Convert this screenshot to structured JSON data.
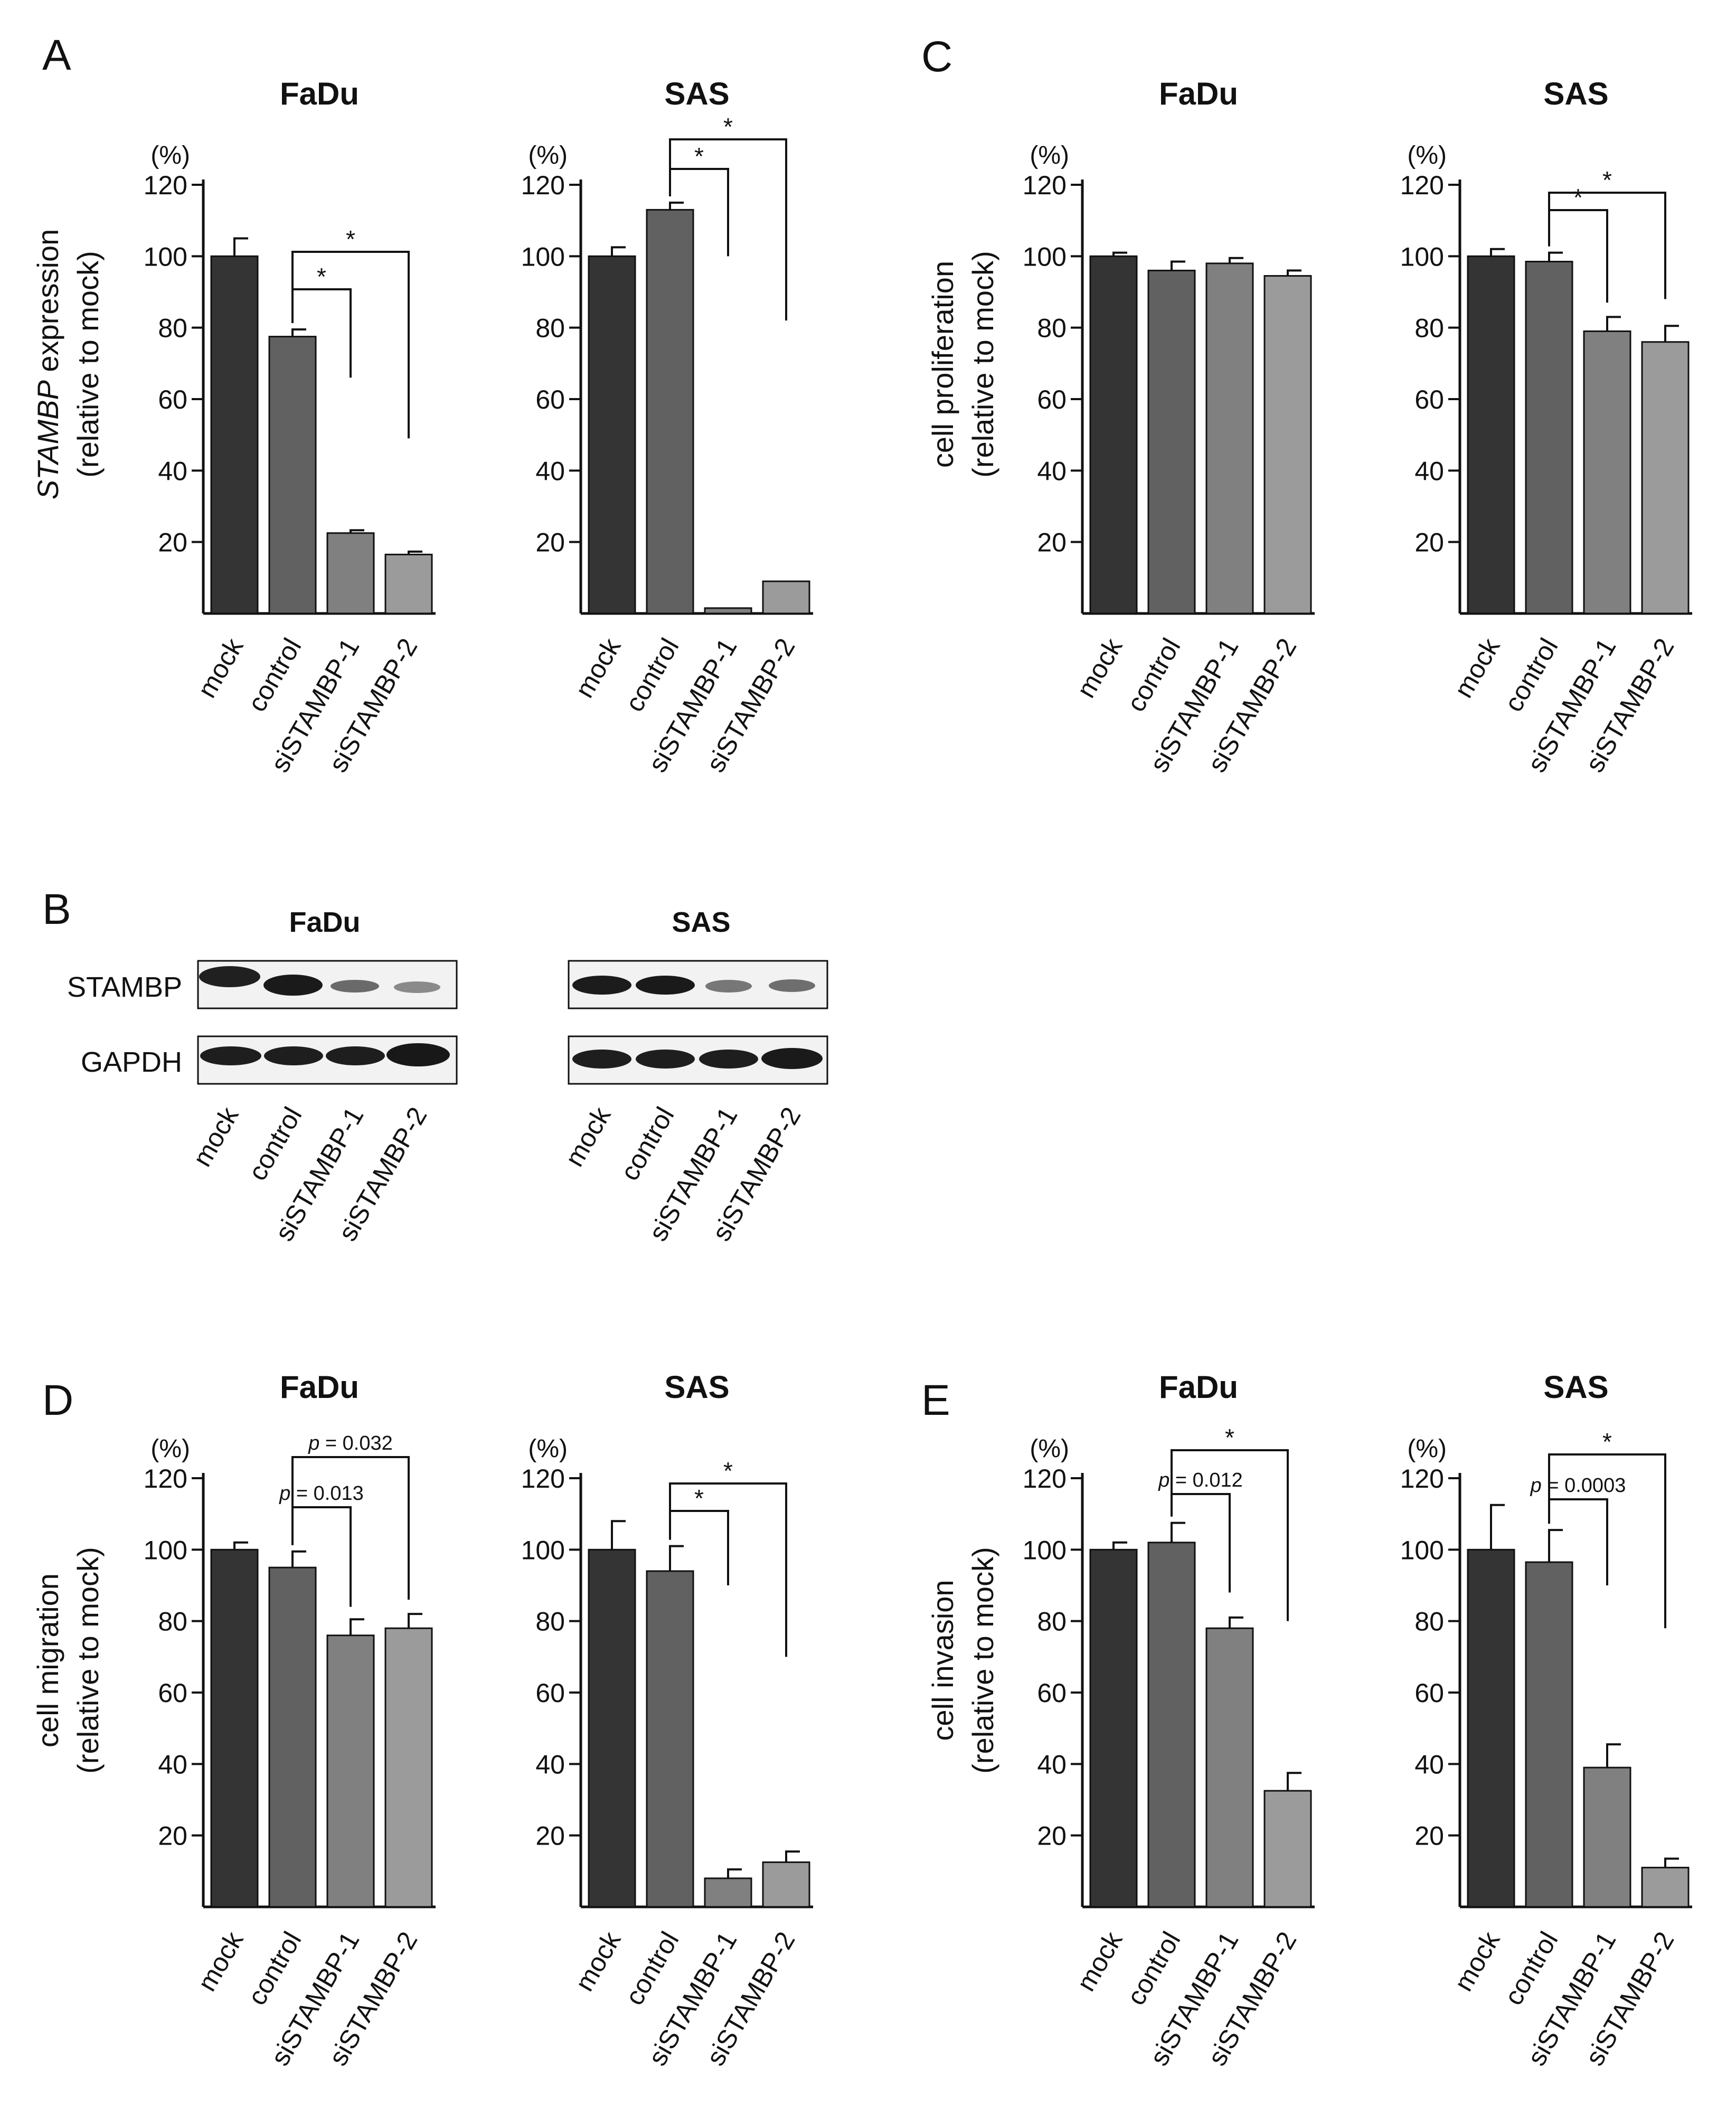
{
  "colors": {
    "mock": "#343434",
    "control": "#616161",
    "siSTAMBP-1": "#808080",
    "siSTAMBP-2": "#9b9b9b",
    "axis": "#111111"
  },
  "categories": [
    "mock",
    "control",
    "siSTAMBP-1",
    "siSTAMBP-2"
  ],
  "percent_unit": "(%)",
  "panel_letters": {
    "A": "A",
    "B": "B",
    "C": "C",
    "D": "D",
    "E": "E"
  },
  "ylabels": {
    "A": {
      "italic": "STAMBP",
      "rest": " expression",
      "line2": "(relative to mock)"
    },
    "C": {
      "line1": "cell proliferation",
      "line2": "(relative to mock)"
    },
    "D": {
      "line1": "cell migration",
      "line2": "(relative to mock)"
    },
    "E": {
      "line1": "cell invasion",
      "line2": "(relative to mock)"
    }
  },
  "western_blot": {
    "panel": "B",
    "titles": [
      "FaDu",
      "SAS"
    ],
    "bands": [
      "STAMBP",
      "GAPDH"
    ]
  },
  "chart_data": [
    {
      "type": "bar",
      "panel": "A",
      "title": "FaDu",
      "categories": [
        "mock",
        "control",
        "siSTAMBP-1",
        "siSTAMBP-2"
      ],
      "values": [
        100,
        77.5,
        22.5,
        16.5
      ],
      "errors": [
        5,
        2,
        0.8,
        0.8
      ],
      "ylim": [
        0,
        120
      ],
      "yticks": [
        20,
        40,
        60,
        80,
        100,
        120
      ],
      "significance": [
        {
          "from": "control",
          "to": "siSTAMBP-1",
          "label": "*"
        },
        {
          "from": "control",
          "to": "siSTAMBP-2",
          "label": "*"
        }
      ]
    },
    {
      "type": "bar",
      "panel": "A",
      "title": "SAS",
      "categories": [
        "mock",
        "control",
        "siSTAMBP-1",
        "siSTAMBP-2"
      ],
      "values": [
        100,
        113,
        1.5,
        9
      ],
      "errors": [
        2.5,
        2,
        0.3,
        0.4
      ],
      "ylim": [
        0,
        120
      ],
      "yticks": [
        20,
        40,
        60,
        80,
        100,
        120
      ],
      "significance": [
        {
          "from": "control",
          "to": "siSTAMBP-1",
          "label": "*"
        },
        {
          "from": "control",
          "to": "siSTAMBP-2",
          "label": "*"
        }
      ]
    },
    {
      "type": "bar",
      "panel": "C",
      "title": "FaDu",
      "categories": [
        "mock",
        "control",
        "siSTAMBP-1",
        "siSTAMBP-2"
      ],
      "values": [
        100,
        96,
        98,
        94.5
      ],
      "errors": [
        1,
        2.5,
        1.5,
        1.5
      ],
      "ylim": [
        0,
        120
      ],
      "yticks": [
        20,
        40,
        60,
        80,
        100,
        120
      ],
      "significance": []
    },
    {
      "type": "bar",
      "panel": "C",
      "title": "SAS",
      "categories": [
        "mock",
        "control",
        "siSTAMBP-1",
        "siSTAMBP-2"
      ],
      "values": [
        100,
        98.5,
        79,
        76
      ],
      "errors": [
        2,
        2.5,
        4,
        4.5
      ],
      "ylim": [
        0,
        120
      ],
      "yticks": [
        20,
        40,
        60,
        80,
        100,
        120
      ],
      "significance": [
        {
          "from": "control",
          "to": "siSTAMBP-1",
          "label": "*"
        },
        {
          "from": "control",
          "to": "siSTAMBP-2",
          "label": "*"
        }
      ]
    },
    {
      "type": "bar",
      "panel": "D",
      "title": "FaDu",
      "categories": [
        "mock",
        "control",
        "siSTAMBP-1",
        "siSTAMBP-2"
      ],
      "values": [
        100,
        95,
        76,
        78
      ],
      "errors": [
        2,
        4.5,
        4.5,
        4
      ],
      "ylim": [
        0,
        120
      ],
      "yticks": [
        20,
        40,
        60,
        80,
        100,
        120
      ],
      "significance": [
        {
          "from": "control",
          "to": "siSTAMBP-1",
          "label": "p = 0.013",
          "italic_p": true
        },
        {
          "from": "control",
          "to": "siSTAMBP-2",
          "label": "p = 0.032",
          "italic_p": true
        }
      ]
    },
    {
      "type": "bar",
      "panel": "D",
      "title": "SAS",
      "categories": [
        "mock",
        "control",
        "siSTAMBP-1",
        "siSTAMBP-2"
      ],
      "values": [
        100,
        94,
        8,
        12.5
      ],
      "errors": [
        8,
        7,
        2.5,
        3
      ],
      "ylim": [
        0,
        120
      ],
      "yticks": [
        20,
        40,
        60,
        80,
        100,
        120
      ],
      "significance": [
        {
          "from": "control",
          "to": "siSTAMBP-1",
          "label": "*"
        },
        {
          "from": "control",
          "to": "siSTAMBP-2",
          "label": "*"
        }
      ]
    },
    {
      "type": "bar",
      "panel": "E",
      "title": "FaDu",
      "categories": [
        "mock",
        "control",
        "siSTAMBP-1",
        "siSTAMBP-2"
      ],
      "values": [
        100,
        102,
        78,
        32.5
      ],
      "errors": [
        2,
        5.5,
        3,
        5
      ],
      "ylim": [
        0,
        120
      ],
      "yticks": [
        20,
        40,
        60,
        80,
        100,
        120
      ],
      "significance": [
        {
          "from": "control",
          "to": "siSTAMBP-1",
          "label": "p = 0.012",
          "italic_p": true
        },
        {
          "from": "control",
          "to": "siSTAMBP-2",
          "label": "*"
        }
      ]
    },
    {
      "type": "bar",
      "panel": "E",
      "title": "SAS",
      "categories": [
        "mock",
        "control",
        "siSTAMBP-1",
        "siSTAMBP-2"
      ],
      "values": [
        100,
        96.5,
        39,
        11
      ],
      "errors": [
        12.5,
        9,
        6.5,
        2.5
      ],
      "ylim": [
        0,
        120
      ],
      "yticks": [
        20,
        40,
        60,
        80,
        100,
        120
      ],
      "significance": [
        {
          "from": "control",
          "to": "siSTAMBP-1",
          "label": "p = 0.0003",
          "italic_p": true
        },
        {
          "from": "control",
          "to": "siSTAMBP-2",
          "label": "*"
        }
      ]
    }
  ]
}
